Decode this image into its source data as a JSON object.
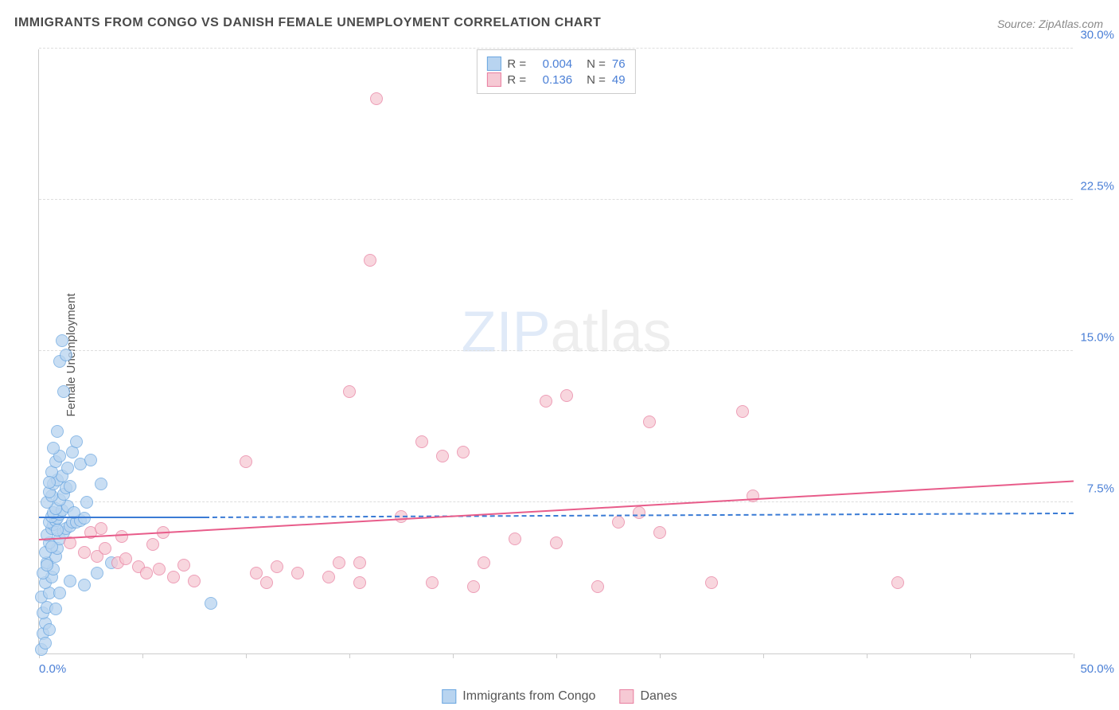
{
  "title": "IMMIGRANTS FROM CONGO VS DANISH FEMALE UNEMPLOYMENT CORRELATION CHART",
  "source": "Source: ZipAtlas.com",
  "ylabel": "Female Unemployment",
  "watermark": {
    "zip": "ZIP",
    "atlas": "atlas"
  },
  "chart": {
    "type": "scatter",
    "xlim": [
      0,
      50
    ],
    "ylim": [
      0,
      30
    ],
    "xtick_positions": [
      0,
      5,
      10,
      15,
      20,
      25,
      30,
      35,
      40,
      45,
      50
    ],
    "ytick_positions": [
      7.5,
      15.0,
      22.5,
      30.0
    ],
    "ytick_labels": [
      "7.5%",
      "15.0%",
      "22.5%",
      "30.0%"
    ],
    "xaxis_start_label": "0.0%",
    "xaxis_end_label": "50.0%",
    "background_color": "#ffffff",
    "grid_color": "#dddddd",
    "axis_color": "#cccccc",
    "tick_label_color": "#4a7fd6",
    "marker_radius": 8,
    "marker_stroke_width": 1
  },
  "series": [
    {
      "name": "Immigrants from Congo",
      "color_fill": "#b8d4f0",
      "color_stroke": "#6aa6e0",
      "R": "0.004",
      "N": "76",
      "regression": {
        "x1": 0,
        "y1": 6.7,
        "x2": 8,
        "y2": 6.7,
        "color": "#3a7bd5",
        "solid_until_x": 8,
        "dash_to_x": 50,
        "dash_y": 6.9
      },
      "points": [
        [
          0.1,
          0.2
        ],
        [
          0.2,
          1.0
        ],
        [
          0.3,
          1.5
        ],
        [
          0.2,
          2.0
        ],
        [
          0.4,
          2.3
        ],
        [
          0.1,
          2.8
        ],
        [
          0.5,
          3.0
        ],
        [
          0.3,
          3.5
        ],
        [
          0.6,
          3.8
        ],
        [
          0.2,
          4.0
        ],
        [
          0.7,
          4.2
        ],
        [
          0.4,
          4.5
        ],
        [
          0.8,
          4.8
        ],
        [
          0.3,
          5.0
        ],
        [
          0.9,
          5.2
        ],
        [
          0.5,
          5.5
        ],
        [
          1.0,
          5.7
        ],
        [
          0.4,
          5.9
        ],
        [
          1.2,
          6.0
        ],
        [
          0.6,
          6.2
        ],
        [
          1.3,
          6.2
        ],
        [
          0.7,
          6.4
        ],
        [
          1.5,
          6.3
        ],
        [
          0.5,
          6.5
        ],
        [
          1.6,
          6.5
        ],
        [
          0.8,
          6.6
        ],
        [
          1.8,
          6.5
        ],
        [
          0.9,
          6.7
        ],
        [
          2.0,
          6.6
        ],
        [
          0.6,
          6.8
        ],
        [
          2.2,
          6.7
        ],
        [
          1.0,
          6.9
        ],
        [
          0.7,
          7.0
        ],
        [
          1.1,
          7.1
        ],
        [
          0.8,
          7.2
        ],
        [
          1.4,
          7.3
        ],
        [
          0.4,
          7.5
        ],
        [
          1.0,
          7.6
        ],
        [
          0.6,
          7.8
        ],
        [
          1.2,
          7.9
        ],
        [
          0.5,
          8.0
        ],
        [
          1.3,
          8.2
        ],
        [
          0.7,
          8.4
        ],
        [
          1.5,
          8.3
        ],
        [
          0.9,
          8.6
        ],
        [
          3.0,
          8.4
        ],
        [
          1.1,
          8.8
        ],
        [
          0.6,
          9.0
        ],
        [
          1.4,
          9.2
        ],
        [
          0.8,
          9.5
        ],
        [
          2.0,
          9.4
        ],
        [
          1.0,
          9.8
        ],
        [
          2.5,
          9.6
        ],
        [
          1.6,
          10.0
        ],
        [
          0.7,
          10.2
        ],
        [
          1.8,
          10.5
        ],
        [
          8.3,
          2.5
        ],
        [
          2.2,
          3.4
        ],
        [
          2.8,
          4.0
        ],
        [
          3.5,
          4.5
        ],
        [
          0.9,
          11.0
        ],
        [
          1.2,
          13.0
        ],
        [
          1.0,
          14.5
        ],
        [
          1.3,
          14.8
        ],
        [
          1.1,
          15.5
        ],
        [
          0.3,
          0.5
        ],
        [
          0.5,
          1.2
        ],
        [
          0.8,
          2.2
        ],
        [
          1.0,
          3.0
        ],
        [
          1.5,
          3.6
        ],
        [
          0.4,
          4.4
        ],
        [
          0.6,
          5.3
        ],
        [
          0.9,
          6.1
        ],
        [
          1.7,
          7.0
        ],
        [
          2.3,
          7.5
        ],
        [
          0.5,
          8.5
        ]
      ]
    },
    {
      "name": "Danes",
      "color_fill": "#f6c9d4",
      "color_stroke": "#e87fa0",
      "R": "0.136",
      "N": "49",
      "regression": {
        "x1": 0,
        "y1": 5.6,
        "x2": 50,
        "y2": 8.5,
        "color": "#e85c8a"
      },
      "points": [
        [
          1.5,
          5.5
        ],
        [
          2.2,
          5.0
        ],
        [
          2.8,
          4.8
        ],
        [
          3.2,
          5.2
        ],
        [
          3.8,
          4.5
        ],
        [
          4.2,
          4.7
        ],
        [
          4.8,
          4.3
        ],
        [
          5.2,
          4.0
        ],
        [
          5.8,
          4.2
        ],
        [
          6.5,
          3.8
        ],
        [
          7.0,
          4.4
        ],
        [
          7.5,
          3.6
        ],
        [
          10.5,
          4.0
        ],
        [
          11.0,
          3.5
        ],
        [
          11.5,
          4.3
        ],
        [
          12.5,
          4.0
        ],
        [
          14.0,
          3.8
        ],
        [
          14.5,
          4.5
        ],
        [
          15.5,
          3.5
        ],
        [
          10.0,
          9.5
        ],
        [
          15.0,
          13.0
        ],
        [
          15.5,
          4.5
        ],
        [
          17.5,
          6.8
        ],
        [
          16.0,
          19.5
        ],
        [
          16.3,
          27.5
        ],
        [
          18.5,
          10.5
        ],
        [
          19.0,
          3.5
        ],
        [
          19.5,
          9.8
        ],
        [
          20.5,
          10.0
        ],
        [
          21.0,
          3.3
        ],
        [
          21.5,
          4.5
        ],
        [
          23.0,
          5.7
        ],
        [
          24.5,
          12.5
        ],
        [
          25.0,
          5.5
        ],
        [
          25.5,
          12.8
        ],
        [
          27.0,
          3.3
        ],
        [
          28.0,
          6.5
        ],
        [
          29.0,
          7.0
        ],
        [
          29.5,
          11.5
        ],
        [
          30.0,
          6.0
        ],
        [
          32.5,
          3.5
        ],
        [
          34.0,
          12.0
        ],
        [
          34.5,
          7.8
        ],
        [
          41.5,
          3.5
        ],
        [
          2.5,
          6.0
        ],
        [
          3.0,
          6.2
        ],
        [
          4.0,
          5.8
        ],
        [
          5.5,
          5.4
        ],
        [
          6.0,
          6.0
        ]
      ]
    }
  ],
  "bottom_legend": [
    {
      "label": "Immigrants from Congo",
      "fill": "#b8d4f0",
      "stroke": "#6aa6e0"
    },
    {
      "label": "Danes",
      "fill": "#f6c9d4",
      "stroke": "#e87fa0"
    }
  ]
}
